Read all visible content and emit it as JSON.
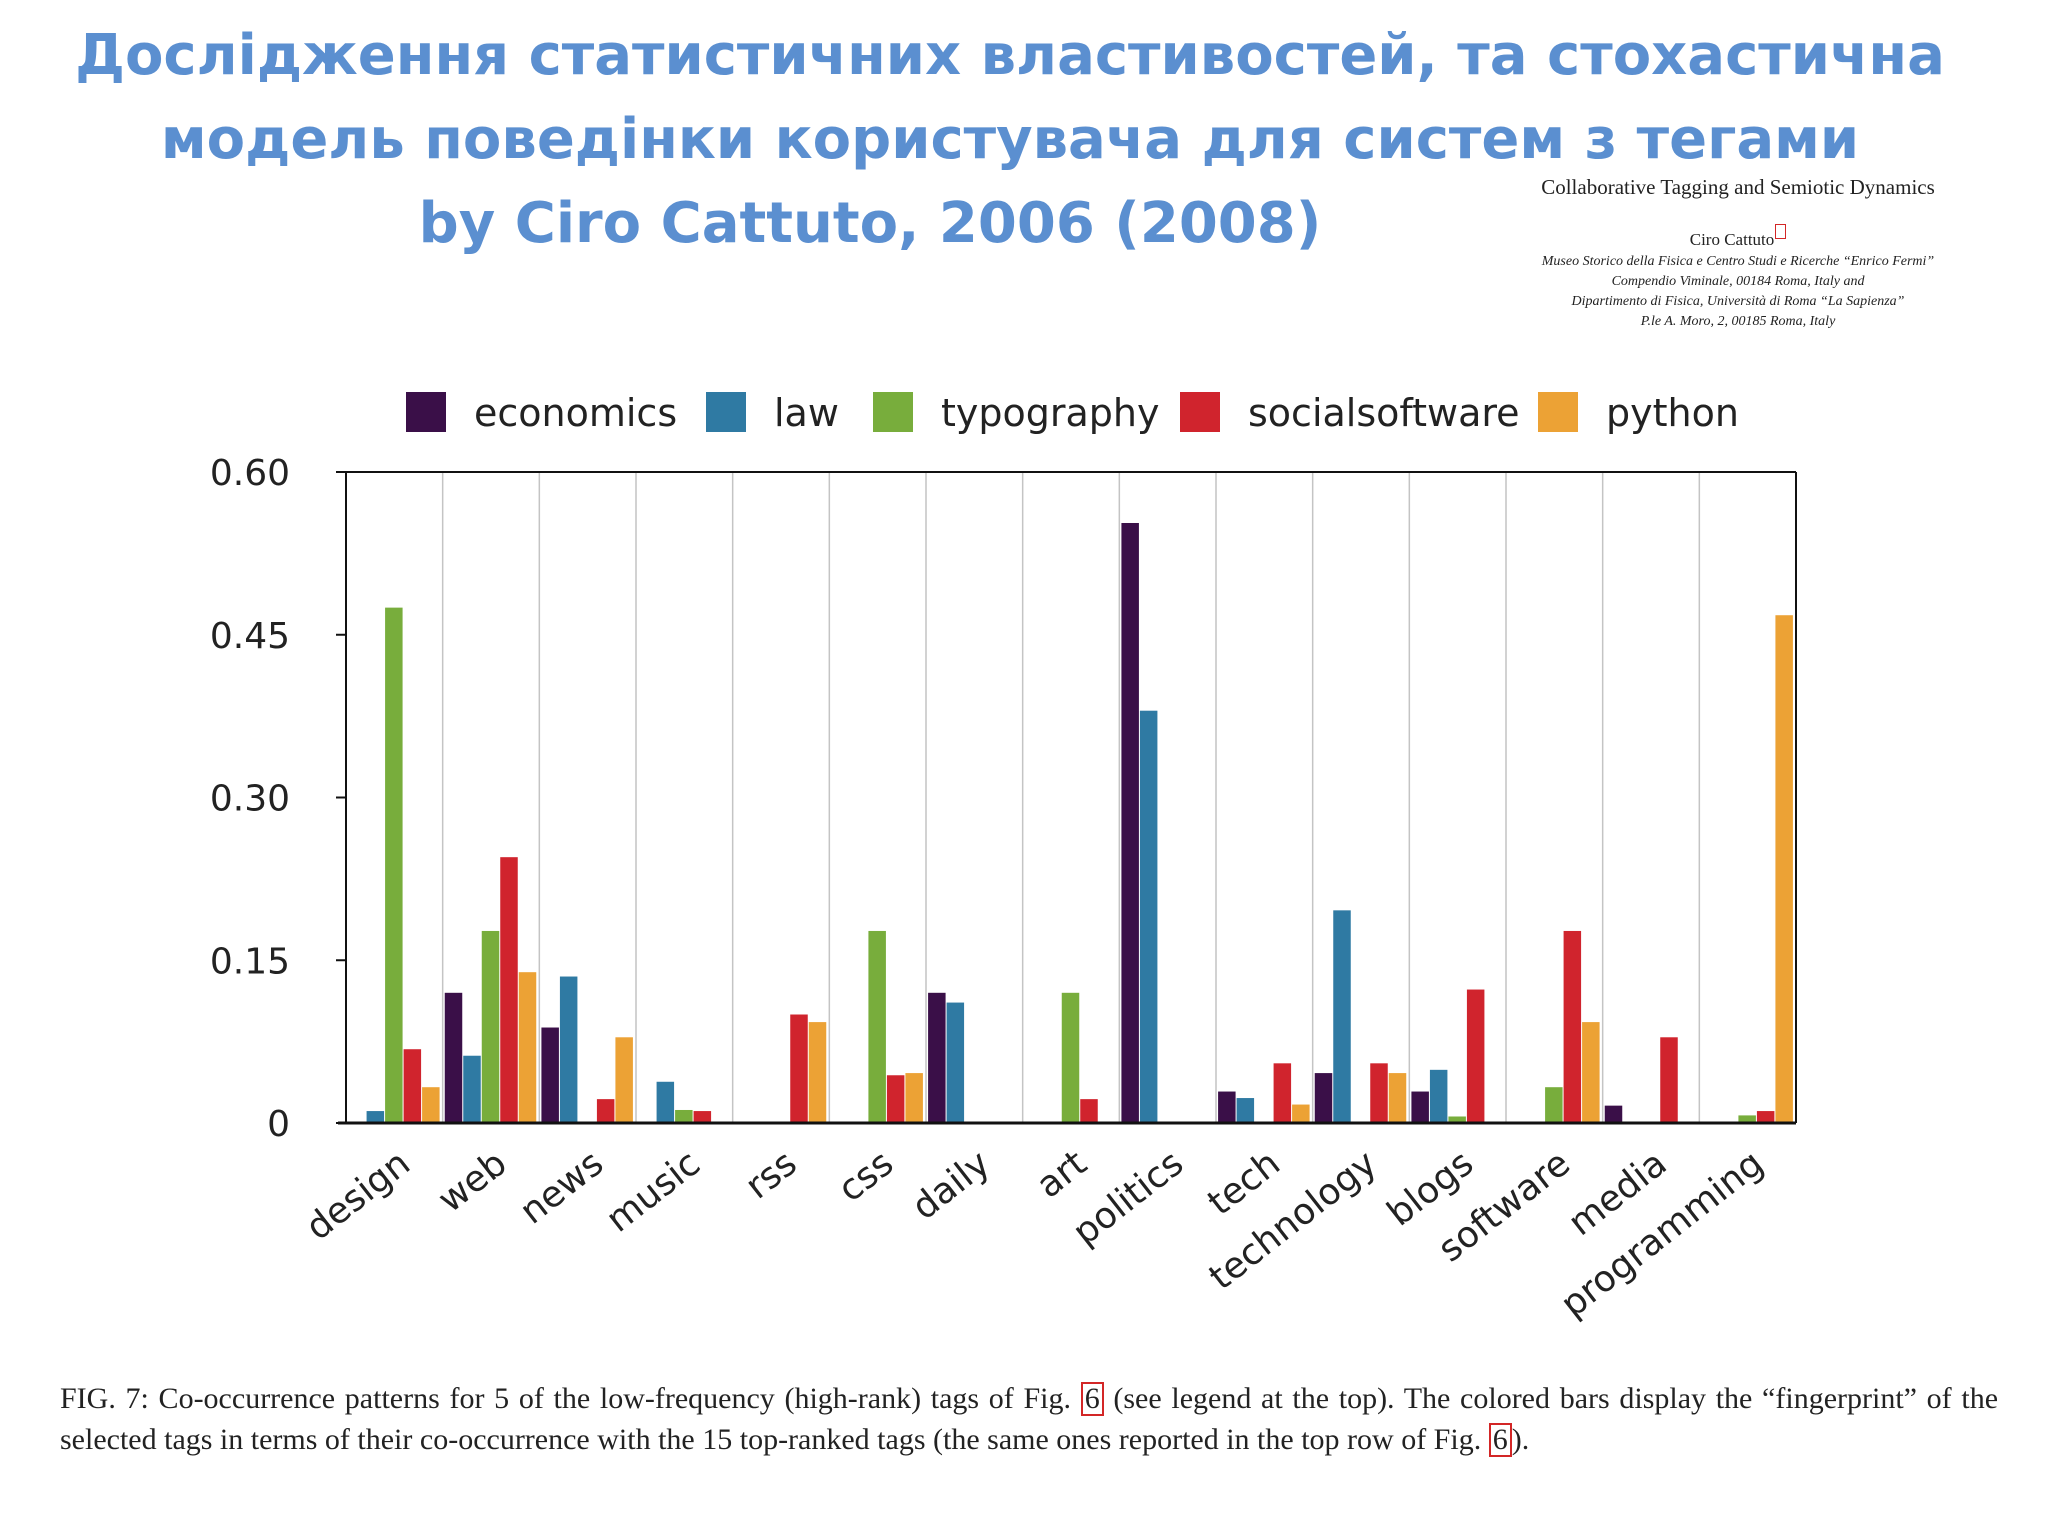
{
  "title": {
    "line1": "Дослідження статистичних властивостей, та стохастична",
    "line2": "модель поведінки користувача для систем з тегами",
    "line3": "by Ciro Cattuto, 2006 (2008)"
  },
  "paper": {
    "title": "Collaborative Tagging and Semiotic Dynamics",
    "author": "Ciro Cattuto",
    "affiliation": [
      "Museo Storico della Fisica e Centro Studi e Ricerche “Enrico Fermi”",
      "Compendio Viminale, 00184 Roma, Italy and",
      "Dipartimento di Fisica, Università di Roma “La Sapienza”",
      "P.le A. Moro, 2, 00185 Roma, Italy"
    ]
  },
  "colors": {
    "title": "#5b8fd0",
    "economics": "#3a0f48",
    "law": "#2f7aa3",
    "typography": "#78ad3c",
    "socialsoftware": "#d0242d",
    "python": "#eca235",
    "ref_box": "#d32626"
  },
  "chart_data": {
    "type": "bar",
    "title": "",
    "xlabel": "",
    "ylabel": "",
    "ylim": [
      0,
      0.6
    ],
    "yticks": [
      "0",
      "0.15",
      "0.30",
      "0.45",
      "0.60"
    ],
    "ytick_values": [
      0,
      0.15,
      0.3,
      0.45,
      0.6
    ],
    "legend_position": "top",
    "grid": "vertical",
    "categories": [
      "design",
      "web",
      "news",
      "music",
      "rss",
      "css",
      "daily",
      "art",
      "politics",
      "tech",
      "technology",
      "blogs",
      "software",
      "media",
      "programming"
    ],
    "series": [
      {
        "name": "economics",
        "values": [
          0,
          0.12,
          0.088,
          0,
          0,
          0,
          0.12,
          0,
          0.553,
          0.029,
          0.046,
          0.029,
          0,
          0.016,
          0
        ]
      },
      {
        "name": "law",
        "values": [
          0.011,
          0.062,
          0.135,
          0.038,
          0,
          0,
          0.111,
          0,
          0.38,
          0.023,
          0.196,
          0.049,
          0,
          0,
          0
        ]
      },
      {
        "name": "typography",
        "values": [
          0.475,
          0.177,
          0,
          0.012,
          0,
          0.177,
          0,
          0.12,
          0,
          0,
          0,
          0.006,
          0.033,
          0,
          0.007
        ]
      },
      {
        "name": "socialsoftware",
        "values": [
          0.068,
          0.245,
          0.022,
          0.011,
          0.1,
          0.044,
          0,
          0.022,
          0,
          0.055,
          0.055,
          0.123,
          0.177,
          0.079,
          0.011
        ]
      },
      {
        "name": "python",
        "values": [
          0.033,
          0.139,
          0.079,
          0,
          0.093,
          0.046,
          0,
          0,
          0,
          0.017,
          0.046,
          0,
          0.093,
          0,
          0.468
        ]
      }
    ]
  },
  "caption": {
    "text1": "FIG. 7:   Co-occurrence patterns for 5 of the low-frequency (high-rank) tags of Fig. ",
    "ref1": "6",
    "text2": " (see legend at the top).  The colored bars display the “fingerprint” of the selected tags in terms of their co-occurrence with the 15 top-ranked tags (the same ones reported in the top row of Fig. ",
    "ref2": "6",
    "text3": ")."
  }
}
